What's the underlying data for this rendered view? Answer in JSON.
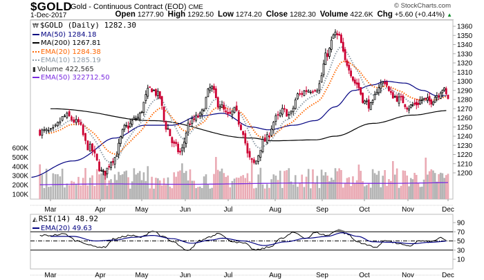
{
  "header": {
    "symbol": "$GOLD",
    "name": "Gold - Continuous Contract (EOD)",
    "exchange": "CME",
    "date": "1-Dec-2017",
    "open_label": "Open",
    "open": "1277.90",
    "high_label": "High",
    "high": "1292.50",
    "low_label": "Low",
    "low": "1274.20",
    "close_label": "Close",
    "close": "1282.30",
    "volume_label": "Volume",
    "volume": "422.6K",
    "chg_label": "Chg",
    "chg": "+5.60 (+0.44%)",
    "chg_icon": "up-triangle-icon",
    "copyright": "© StockCharts.com"
  },
  "colors": {
    "up_candle": "#000000",
    "down_candle": "#cc0033",
    "ma50": "#000080",
    "ma200": "#000000",
    "ema20": "#ff6600",
    "ema10": "#8c9aa5",
    "volume_up": "#b4b4b4",
    "volume_down": "#eaaab4",
    "vol_ema50": "#7a2be0",
    "rsi": "#000000",
    "rsi_ema": "#000080"
  },
  "legend": {
    "main": [
      {
        "label": "$GOLD (Daily) 1282.30",
        "icon": "candlestick-icon",
        "color": "#000000"
      },
      {
        "label": "MA(50) 1284.18",
        "style": "solid",
        "color": "#000080"
      },
      {
        "label": "MA(200) 1267.81",
        "style": "solid",
        "color": "#000000"
      },
      {
        "label": "EMA(20) 1284.38",
        "style": "dotted",
        "color": "#ff6600"
      },
      {
        "label": "EMA(10) 1285.19",
        "style": "dotted",
        "color": "#8c9aa5"
      },
      {
        "label": "Volume 422,565",
        "icon": "volume-bars-icon",
        "color": "#333333"
      },
      {
        "label": "EMA(50) 322712.50",
        "style": "solid",
        "color": "#7a2be0"
      }
    ],
    "rsi": [
      {
        "label": "RSI(14) 48.92",
        "icon": "rsi-area-icon",
        "color": "#000000"
      },
      {
        "label": "EMA(20) 49.63",
        "style": "solid",
        "color": "#000080"
      }
    ]
  },
  "chart_data": [
    {
      "type": "candlestick",
      "title": "$GOLD (Daily)",
      "xlabel": "",
      "ylabel": "",
      "x_tick_labels": [
        "Mar",
        "Apr",
        "May",
        "Jun",
        "Jul",
        "Aug",
        "Sep",
        "Oct",
        "Nov",
        "Dec"
      ],
      "y_tick_labels": [
        1200,
        1210,
        1220,
        1230,
        1240,
        1250,
        1260,
        1270,
        1280,
        1290,
        1300,
        1310,
        1320,
        1330,
        1340,
        1350,
        1360
      ],
      "ylim": [
        1195,
        1365
      ],
      "grid": false,
      "legend_position": "top-left",
      "swing_points": [
        {
          "month_pos": 0.0,
          "price": 1245
        },
        {
          "month_pos": 0.35,
          "price": 1262
        },
        {
          "month_pos": 0.6,
          "price": 1255
        },
        {
          "month_pos": 0.85,
          "price": 1228
        },
        {
          "month_pos": 1.2,
          "price": 1199
        },
        {
          "month_pos": 1.45,
          "price": 1215
        },
        {
          "month_pos": 1.8,
          "price": 1250
        },
        {
          "month_pos": 2.1,
          "price": 1260
        },
        {
          "month_pos": 2.45,
          "price": 1292
        },
        {
          "month_pos": 2.65,
          "price": 1285
        },
        {
          "month_pos": 2.85,
          "price": 1250
        },
        {
          "month_pos": 3.05,
          "price": 1230
        },
        {
          "month_pos": 3.2,
          "price": 1222
        },
        {
          "month_pos": 3.45,
          "price": 1255
        },
        {
          "month_pos": 3.7,
          "price": 1262
        },
        {
          "month_pos": 4.0,
          "price": 1293
        },
        {
          "month_pos": 4.2,
          "price": 1275
        },
        {
          "month_pos": 4.45,
          "price": 1262
        },
        {
          "month_pos": 4.6,
          "price": 1268
        },
        {
          "month_pos": 4.75,
          "price": 1250
        },
        {
          "month_pos": 4.95,
          "price": 1215
        },
        {
          "month_pos": 5.05,
          "price": 1210
        },
        {
          "month_pos": 5.3,
          "price": 1235
        },
        {
          "month_pos": 5.6,
          "price": 1260
        },
        {
          "month_pos": 5.75,
          "price": 1268
        },
        {
          "month_pos": 5.9,
          "price": 1263
        },
        {
          "month_pos": 6.1,
          "price": 1285
        },
        {
          "month_pos": 6.3,
          "price": 1290
        },
        {
          "month_pos": 6.55,
          "price": 1293
        },
        {
          "month_pos": 6.8,
          "price": 1330
        },
        {
          "month_pos": 7.0,
          "price": 1352
        },
        {
          "month_pos": 7.1,
          "price": 1348
        },
        {
          "month_pos": 7.3,
          "price": 1320
        },
        {
          "month_pos": 7.55,
          "price": 1298
        },
        {
          "month_pos": 7.8,
          "price": 1277
        },
        {
          "month_pos": 7.95,
          "price": 1273
        },
        {
          "month_pos": 8.15,
          "price": 1295
        },
        {
          "month_pos": 8.3,
          "price": 1300
        },
        {
          "month_pos": 8.45,
          "price": 1285
        },
        {
          "month_pos": 8.7,
          "price": 1280
        },
        {
          "month_pos": 8.9,
          "price": 1272
        },
        {
          "month_pos": 9.1,
          "price": 1275
        },
        {
          "month_pos": 9.3,
          "price": 1280
        },
        {
          "month_pos": 9.5,
          "price": 1278
        },
        {
          "month_pos": 9.7,
          "price": 1285
        },
        {
          "month_pos": 9.85,
          "price": 1292
        },
        {
          "month_pos": 10.0,
          "price": 1282
        }
      ],
      "ma200_points": [
        {
          "month_pos": 0.0,
          "price": 1270
        },
        {
          "month_pos": 2.5,
          "price": 1257
        },
        {
          "month_pos": 5.0,
          "price": 1238
        },
        {
          "month_pos": 5.5,
          "price": 1235
        },
        {
          "month_pos": 6.5,
          "price": 1236
        },
        {
          "month_pos": 7.0,
          "price": 1240
        },
        {
          "month_pos": 8.0,
          "price": 1254
        },
        {
          "month_pos": 9.0,
          "price": 1263
        },
        {
          "month_pos": 10.0,
          "price": 1268
        }
      ],
      "ma50_points": [
        {
          "month_pos": -0.5,
          "price": 1195
        },
        {
          "month_pos": 0.5,
          "price": 1213
        },
        {
          "month_pos": 1.5,
          "price": 1238
        },
        {
          "month_pos": 2.3,
          "price": 1252
        },
        {
          "month_pos": 3.0,
          "price": 1252
        },
        {
          "month_pos": 3.7,
          "price": 1262
        },
        {
          "month_pos": 4.3,
          "price": 1265
        },
        {
          "month_pos": 5.0,
          "price": 1250
        },
        {
          "month_pos": 5.4,
          "price": 1247
        },
        {
          "month_pos": 6.0,
          "price": 1252
        },
        {
          "month_pos": 6.5,
          "price": 1257
        },
        {
          "month_pos": 7.0,
          "price": 1272
        },
        {
          "month_pos": 7.5,
          "price": 1290
        },
        {
          "month_pos": 8.0,
          "price": 1296
        },
        {
          "month_pos": 8.3,
          "price": 1300
        },
        {
          "month_pos": 8.8,
          "price": 1298
        },
        {
          "month_pos": 9.3,
          "price": 1290
        },
        {
          "month_pos": 9.7,
          "price": 1284
        },
        {
          "month_pos": 10.0,
          "price": 1284
        }
      ],
      "final_values": {
        "close": 1282.3,
        "ma50": 1284.18,
        "ma200": 1267.81,
        "ema20": 1284.38,
        "ema10": 1285.19
      }
    },
    {
      "type": "bar",
      "title": "Volume",
      "y_tick_labels": [
        "100K",
        "200K",
        "300K",
        "400K",
        "500K",
        "600K"
      ],
      "ylim": [
        0,
        650000
      ],
      "ema50_final": 322712.5,
      "last_volume": 422565,
      "typical_range": [
        150000,
        450000
      ]
    },
    {
      "type": "line",
      "title": "RSI(14)",
      "y_tick_labels": [
        10,
        30,
        50,
        70,
        90
      ],
      "ylim": [
        0,
        100
      ],
      "reference_lines": [
        30,
        50,
        70
      ],
      "rsi_points": [
        {
          "month_pos": 0.0,
          "value": 62
        },
        {
          "month_pos": 0.3,
          "value": 65
        },
        {
          "month_pos": 0.6,
          "value": 50
        },
        {
          "month_pos": 1.0,
          "value": 38
        },
        {
          "month_pos": 1.2,
          "value": 36
        },
        {
          "month_pos": 1.5,
          "value": 55
        },
        {
          "month_pos": 1.9,
          "value": 62
        },
        {
          "month_pos": 2.2,
          "value": 58
        },
        {
          "month_pos": 2.5,
          "value": 72
        },
        {
          "month_pos": 2.8,
          "value": 58
        },
        {
          "month_pos": 3.0,
          "value": 48
        },
        {
          "month_pos": 3.4,
          "value": 28
        },
        {
          "month_pos": 3.7,
          "value": 50
        },
        {
          "month_pos": 4.0,
          "value": 60
        },
        {
          "month_pos": 4.2,
          "value": 68
        },
        {
          "month_pos": 4.5,
          "value": 50
        },
        {
          "month_pos": 4.8,
          "value": 45
        },
        {
          "month_pos": 5.1,
          "value": 30
        },
        {
          "month_pos": 5.4,
          "value": 36
        },
        {
          "month_pos": 5.7,
          "value": 55
        },
        {
          "month_pos": 6.0,
          "value": 68
        },
        {
          "month_pos": 6.3,
          "value": 56
        },
        {
          "month_pos": 6.5,
          "value": 68
        },
        {
          "month_pos": 6.8,
          "value": 62
        },
        {
          "month_pos": 7.1,
          "value": 75
        },
        {
          "month_pos": 7.3,
          "value": 66
        },
        {
          "month_pos": 7.6,
          "value": 48
        },
        {
          "month_pos": 7.9,
          "value": 40
        },
        {
          "month_pos": 8.1,
          "value": 36
        },
        {
          "month_pos": 8.3,
          "value": 52
        },
        {
          "month_pos": 8.6,
          "value": 45
        },
        {
          "month_pos": 8.9,
          "value": 38
        },
        {
          "month_pos": 9.2,
          "value": 50
        },
        {
          "month_pos": 9.5,
          "value": 48
        },
        {
          "month_pos": 9.8,
          "value": 56
        },
        {
          "month_pos": 10.0,
          "value": 49
        }
      ],
      "ema_points": [
        {
          "month_pos": 0.0,
          "value": 60
        },
        {
          "month_pos": 0.5,
          "value": 60
        },
        {
          "month_pos": 1.0,
          "value": 50
        },
        {
          "month_pos": 1.5,
          "value": 52
        },
        {
          "month_pos": 2.0,
          "value": 58
        },
        {
          "month_pos": 2.5,
          "value": 62
        },
        {
          "month_pos": 3.0,
          "value": 55
        },
        {
          "month_pos": 3.5,
          "value": 45
        },
        {
          "month_pos": 4.0,
          "value": 52
        },
        {
          "month_pos": 4.3,
          "value": 56
        },
        {
          "month_pos": 4.8,
          "value": 50
        },
        {
          "month_pos": 5.3,
          "value": 40
        },
        {
          "month_pos": 5.8,
          "value": 48
        },
        {
          "month_pos": 6.3,
          "value": 56
        },
        {
          "month_pos": 6.8,
          "value": 60
        },
        {
          "month_pos": 7.2,
          "value": 68
        },
        {
          "month_pos": 7.6,
          "value": 60
        },
        {
          "month_pos": 8.0,
          "value": 48
        },
        {
          "month_pos": 8.5,
          "value": 47
        },
        {
          "month_pos": 9.0,
          "value": 44
        },
        {
          "month_pos": 9.5,
          "value": 47
        },
        {
          "month_pos": 10.0,
          "value": 49.6
        }
      ],
      "last_rsi": 48.92,
      "last_ema20": 49.63
    }
  ]
}
